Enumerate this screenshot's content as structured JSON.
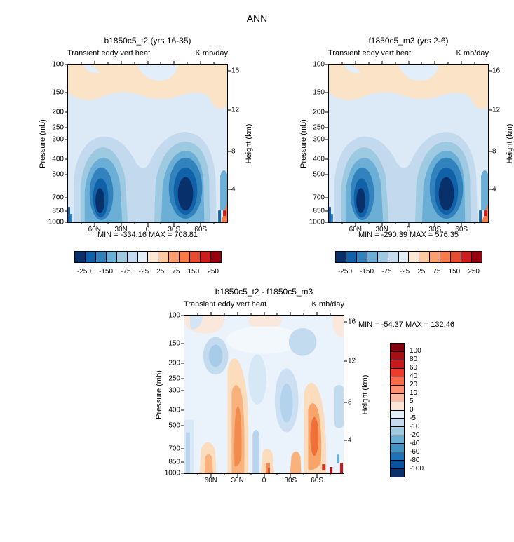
{
  "figure": {
    "season_title": "ANN"
  },
  "axes": {
    "pressure_label": "Pressure (mb)",
    "pressure_ticks": [
      "100",
      "150",
      "200",
      "250",
      "300",
      "400",
      "500",
      "700",
      "850",
      "1000"
    ],
    "height_label": "Height (km)",
    "height_ticks": [
      "16",
      "12",
      "8",
      "4"
    ],
    "lat_ticks": [
      "60N",
      "30N",
      "0",
      "30S",
      "60S"
    ]
  },
  "palettes": {
    "flux": [
      "#08306b",
      "#1161a9",
      "#3182bd",
      "#6baed6",
      "#9ecae1",
      "#c6dbef",
      "#e4eef9",
      "#fde8d3",
      "#fdc9a0",
      "#fc9e6d",
      "#f97b4a",
      "#e84c2f",
      "#cb1d1f",
      "#98000f"
    ],
    "diff": [
      "#7f000d",
      "#a50f15",
      "#cb181d",
      "#ef3b2c",
      "#fb6a4a",
      "#fc9272",
      "#fcbba1",
      "#fde4d4",
      "#e3eef8",
      "#c6dbef",
      "#9ecae1",
      "#6baed6",
      "#4292c6",
      "#2171b5",
      "#08519c",
      "#08306b"
    ]
  },
  "chart_data": [
    {
      "type": "heatmap",
      "panel": "top-left",
      "title": "b1850c5_t2 (yrs 16-35)",
      "field": "Transient eddy vert heat",
      "units": "K mb/day",
      "x_axis": {
        "ticks": [
          "60N",
          "30N",
          "0",
          "30S",
          "60S"
        ],
        "range": [
          "90N",
          "90S"
        ]
      },
      "y_axis": {
        "label": "Pressure (mb)",
        "ticks": [
          100,
          150,
          200,
          250,
          300,
          400,
          500,
          700,
          850,
          1000
        ],
        "scale": "log",
        "range": [
          100,
          1000
        ]
      },
      "y_axis_right": {
        "label": "Height (km)",
        "ticks": [
          16,
          12,
          8,
          4
        ]
      },
      "min": -334.16,
      "max": 708.81,
      "stats_text": "MIN = -334.16  MAX = 708.81",
      "colorbar_labels": [
        "-250",
        "-150",
        "-75",
        "-25",
        "25",
        "75",
        "150",
        "250"
      ],
      "features": [
        {
          "region": "40-60N, 400-1000 mb",
          "value": "strong negative core (below -250)"
        },
        {
          "region": "30-60S, 300-1000 mb",
          "value": "strong negative core (below -250)"
        },
        {
          "region": "100-200 mb, most latitudes",
          "value": "weak positive (25-75)"
        }
      ]
    },
    {
      "type": "heatmap",
      "panel": "top-right",
      "title": "f1850c5_m3 (yrs 2-6)",
      "field": "Transient eddy vert heat",
      "units": "K mb/day",
      "x_axis": {
        "ticks": [
          "60N",
          "30N",
          "0",
          "30S",
          "60S"
        ],
        "range": [
          "90N",
          "90S"
        ]
      },
      "y_axis": {
        "label": "Pressure (mb)",
        "ticks": [
          100,
          150,
          200,
          250,
          300,
          400,
          500,
          700,
          850,
          1000
        ],
        "scale": "log",
        "range": [
          100,
          1000
        ]
      },
      "y_axis_right": {
        "label": "Height (km)",
        "ticks": [
          16,
          12,
          8,
          4
        ]
      },
      "min": -290.39,
      "max": 576.35,
      "stats_text": "MIN = -290.39  MAX = 576.35",
      "colorbar_labels": [
        "-250",
        "-150",
        "-75",
        "-25",
        "25",
        "75",
        "150",
        "250"
      ],
      "features": [
        {
          "region": "40-60N, 400-1000 mb",
          "value": "strong negative core (below -250)"
        },
        {
          "region": "30-60S, 300-1000 mb",
          "value": "strong negative core (below -250)"
        },
        {
          "region": "100-200 mb, most latitudes",
          "value": "weak positive (25-75)"
        }
      ]
    },
    {
      "type": "heatmap",
      "panel": "bottom-difference",
      "title": "b1850c5_t2 - f1850c5_m3",
      "field": "Transient eddy vert heat",
      "units": "K mb/day",
      "x_axis": {
        "ticks": [
          "60N",
          "30N",
          "0",
          "30S",
          "60S"
        ],
        "range": [
          "90N",
          "90S"
        ]
      },
      "y_axis": {
        "label": "Pressure (mb)",
        "ticks": [
          100,
          150,
          200,
          250,
          300,
          400,
          500,
          700,
          850,
          1000
        ],
        "scale": "log",
        "range": [
          100,
          1000
        ]
      },
      "y_axis_right": {
        "label": "Height (km)",
        "ticks": [
          16,
          12,
          8,
          4
        ]
      },
      "min": -54.37,
      "max": 132.46,
      "stats_text": "MIN = -54.37  MAX = 132.46",
      "colorbar_labels": [
        "100",
        "80",
        "60",
        "40",
        "20",
        "10",
        "5",
        "0",
        "-5",
        "-10",
        "-20",
        "-40",
        "-60",
        "-80",
        "-100"
      ],
      "features": [
        {
          "region": "25-35N, 400-1000 mb",
          "value": "positive (10-60)"
        },
        {
          "region": "55-65S, 500-1000 mb",
          "value": "positive (10-60)"
        },
        {
          "region": "40-55N, 150-300 mb",
          "value": "negative (-5 to -20)"
        },
        {
          "region": "most of domain",
          "value": "near zero (-5 to 5)"
        }
      ]
    }
  ]
}
